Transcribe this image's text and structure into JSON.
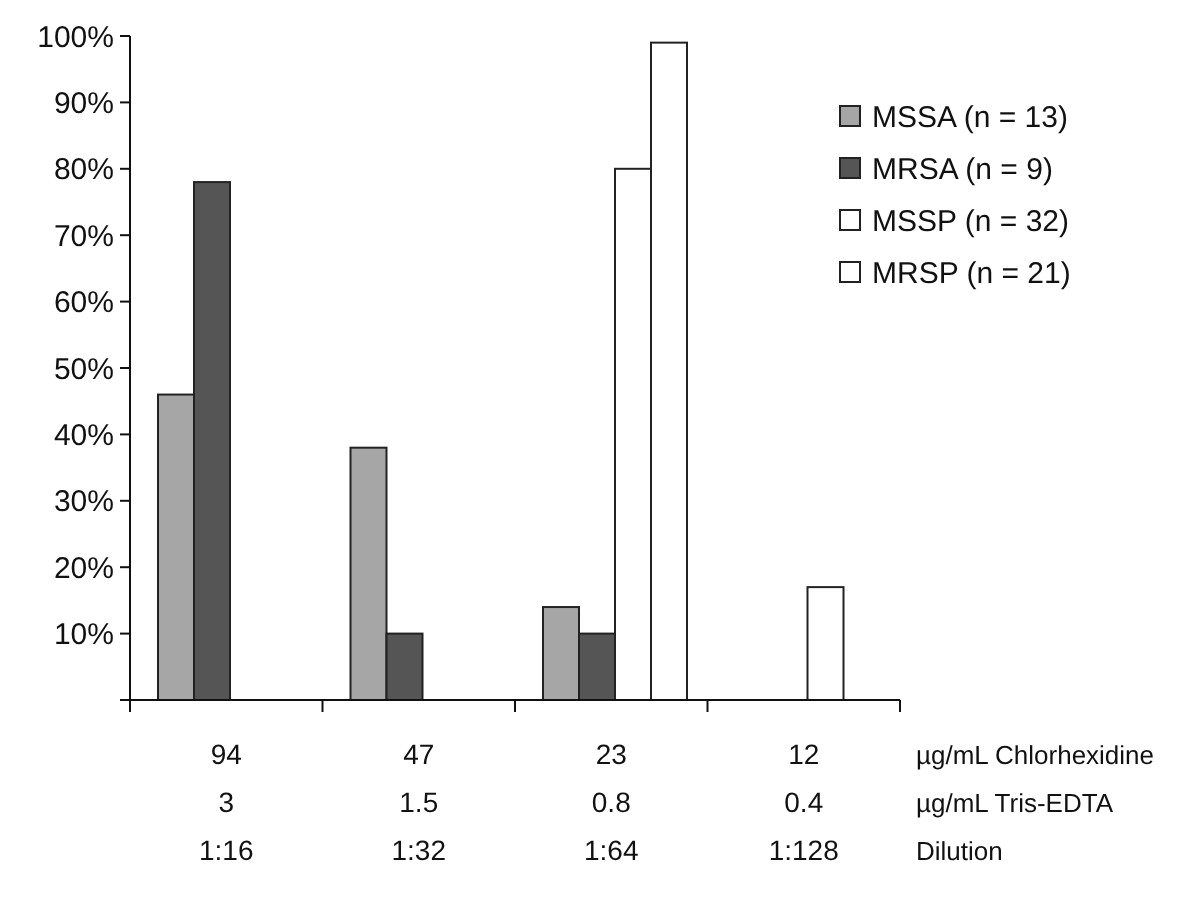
{
  "chart_data": {
    "type": "bar",
    "categories": [
      "94\n3\n1:16",
      "47\n1.5\n1:32",
      "23\n0.8\n1:64",
      "12\n0.4\n1:128"
    ],
    "series": [
      {
        "name": "MSSA (n = 13)",
        "color": "#a6a6a6",
        "values": [
          46,
          38,
          14,
          null
        ]
      },
      {
        "name": "MRSA (n = 9)",
        "color": "#555555",
        "values": [
          78,
          10,
          10,
          null
        ]
      },
      {
        "name": "MSSP (n = 32)",
        "color": "#ffffff",
        "values": [
          null,
          null,
          80,
          17
        ]
      },
      {
        "name": "MRSP (n = 21)",
        "color": "#ffffff",
        "values": [
          null,
          null,
          99,
          null
        ]
      }
    ],
    "ylim": [
      0,
      100
    ],
    "yticks": [
      {
        "value": 0,
        "label": null
      },
      {
        "value": 10,
        "label": "10%"
      },
      {
        "value": 20,
        "label": "20%"
      },
      {
        "value": 30,
        "label": "30%"
      },
      {
        "value": 40,
        "label": "40%"
      },
      {
        "value": 50,
        "label": "50%"
      },
      {
        "value": 60,
        "label": "60%"
      },
      {
        "value": 70,
        "label": "70%"
      },
      {
        "value": 80,
        "label": "80%"
      },
      {
        "value": 90,
        "label": "90%"
      },
      {
        "value": 100,
        "label": "100%"
      }
    ],
    "annotations": [
      "µg/mL Chlorhexidine",
      "µg/mL Tris-EDTA",
      "Dilution"
    ],
    "legend": "top right",
    "grid": false
  }
}
